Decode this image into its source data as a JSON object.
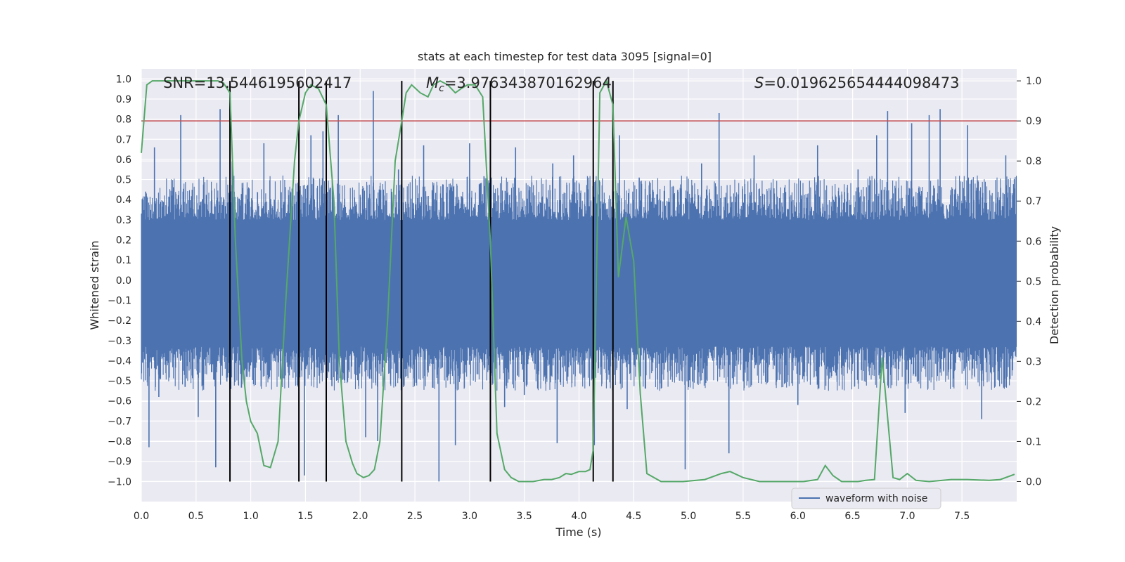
{
  "chart_data": {
    "type": "line",
    "title": "stats at each timestep for test data 3095 [signal=0]",
    "xlabel": "Time (s)",
    "ylabel_left": "Whitened strain",
    "ylabel_right": "Detection probability",
    "xlim": [
      0.0,
      8.0
    ],
    "ylim_left": [
      -1.1,
      1.05
    ],
    "ylim_right": [
      -0.05,
      1.03
    ],
    "x_ticks": [
      "0.0",
      "0.5",
      "1.0",
      "1.5",
      "2.0",
      "2.5",
      "3.0",
      "3.5",
      "4.0",
      "4.5",
      "5.0",
      "5.5",
      "6.0",
      "6.5",
      "7.0",
      "7.5"
    ],
    "x_tick_values": [
      0.0,
      0.5,
      1.0,
      1.5,
      2.0,
      2.5,
      3.0,
      3.5,
      4.0,
      4.5,
      5.0,
      5.5,
      6.0,
      6.5,
      7.0,
      7.5
    ],
    "y_left_ticks": [
      "1.0",
      "0.9",
      "0.8",
      "0.7",
      "0.6",
      "0.5",
      "0.4",
      "0.3",
      "0.2",
      "0.1",
      "0.0",
      "−0.1",
      "−0.2",
      "−0.3",
      "−0.4",
      "−0.5",
      "−0.6",
      "−0.7",
      "−0.8",
      "−0.9",
      "−1.0"
    ],
    "y_left_tick_values": [
      1.0,
      0.9,
      0.8,
      0.7,
      0.6,
      0.5,
      0.4,
      0.3,
      0.2,
      0.1,
      0.0,
      -0.1,
      -0.2,
      -0.3,
      -0.4,
      -0.5,
      -0.6,
      -0.7,
      -0.8,
      -0.9,
      -1.0
    ],
    "y_right_ticks": [
      "1.0",
      "0.9",
      "0.8",
      "0.7",
      "0.6",
      "0.5",
      "0.4",
      "0.3",
      "0.2",
      "0.1",
      "0.0"
    ],
    "y_right_tick_values": [
      1.0,
      0.9,
      0.8,
      0.7,
      0.6,
      0.5,
      0.4,
      0.3,
      0.2,
      0.1,
      0.0
    ],
    "annotations": {
      "snr": "SNR=13.5446195602417",
      "mc_symbol": "M",
      "mc_sub": "c",
      "mc_value": "=3.976343870162964",
      "s_symbol": "S",
      "s_value": "=0.019625654444098473"
    },
    "threshold": 0.9,
    "vertical_lines": [
      0.81,
      1.44,
      1.69,
      2.38,
      3.19,
      4.13,
      4.31
    ],
    "waveform_series": {
      "name": "waveform with noise",
      "color": "#4c72b0",
      "duration": 8.0,
      "samples": 2400,
      "spikes": [
        {
          "x": 0.04,
          "value": 0.44
        },
        {
          "x": 0.07,
          "value": -0.83
        },
        {
          "x": 0.12,
          "value": 0.66
        },
        {
          "x": 0.16,
          "value": -0.58
        },
        {
          "x": 0.36,
          "value": 0.82
        },
        {
          "x": 0.4,
          "value": -0.53
        },
        {
          "x": 0.52,
          "value": -0.68
        },
        {
          "x": 0.68,
          "value": -0.93
        },
        {
          "x": 0.72,
          "value": 0.85
        },
        {
          "x": 0.83,
          "value": 0.59
        },
        {
          "x": 1.12,
          "value": 0.68
        },
        {
          "x": 1.49,
          "value": -0.97
        },
        {
          "x": 1.55,
          "value": 0.72
        },
        {
          "x": 1.66,
          "value": 0.74
        },
        {
          "x": 1.69,
          "value": -0.73
        },
        {
          "x": 1.8,
          "value": 0.82
        },
        {
          "x": 2.05,
          "value": -0.78
        },
        {
          "x": 2.12,
          "value": 0.94
        },
        {
          "x": 2.16,
          "value": -0.8
        },
        {
          "x": 2.35,
          "value": 0.55
        },
        {
          "x": 2.58,
          "value": 0.67
        },
        {
          "x": 2.72,
          "value": -1.0
        },
        {
          "x": 2.87,
          "value": -0.82
        },
        {
          "x": 3.0,
          "value": 0.68
        },
        {
          "x": 3.32,
          "value": -0.63
        },
        {
          "x": 3.42,
          "value": 0.66
        },
        {
          "x": 3.5,
          "value": -0.57
        },
        {
          "x": 3.76,
          "value": 0.58
        },
        {
          "x": 3.8,
          "value": -0.81
        },
        {
          "x": 3.95,
          "value": 0.62
        },
        {
          "x": 4.14,
          "value": -0.82
        },
        {
          "x": 4.37,
          "value": 0.72
        },
        {
          "x": 4.44,
          "value": -0.64
        },
        {
          "x": 4.55,
          "value": 0.51
        },
        {
          "x": 4.97,
          "value": -0.94
        },
        {
          "x": 5.12,
          "value": 0.58
        },
        {
          "x": 5.28,
          "value": 0.83
        },
        {
          "x": 5.37,
          "value": -0.86
        },
        {
          "x": 5.6,
          "value": 0.62
        },
        {
          "x": 6.0,
          "value": -0.62
        },
        {
          "x": 6.18,
          "value": 0.67
        },
        {
          "x": 6.55,
          "value": 0.55
        },
        {
          "x": 6.72,
          "value": 0.72
        },
        {
          "x": 6.82,
          "value": 0.84
        },
        {
          "x": 6.98,
          "value": -0.66
        },
        {
          "x": 7.04,
          "value": 0.78
        },
        {
          "x": 7.2,
          "value": 0.82
        },
        {
          "x": 7.3,
          "value": 0.85
        },
        {
          "x": 7.55,
          "value": 0.77
        },
        {
          "x": 7.68,
          "value": -0.69
        },
        {
          "x": 7.9,
          "value": 0.62
        }
      ]
    },
    "probability_series": {
      "color": "#55a868",
      "x": [
        0.0,
        0.05,
        0.1,
        0.3,
        0.5,
        0.7,
        0.75,
        0.81,
        0.86,
        0.92,
        0.96,
        1.0,
        1.06,
        1.12,
        1.18,
        1.25,
        1.32,
        1.4,
        1.44,
        1.5,
        1.55,
        1.62,
        1.69,
        1.76,
        1.81,
        1.87,
        1.93,
        1.97,
        2.03,
        2.08,
        2.13,
        2.18,
        2.25,
        2.32,
        2.38,
        2.42,
        2.47,
        2.55,
        2.62,
        2.67,
        2.73,
        2.8,
        2.87,
        2.92,
        2.98,
        3.05,
        3.12,
        3.19,
        3.25,
        3.32,
        3.38,
        3.45,
        3.5,
        3.58,
        3.68,
        3.75,
        3.82,
        3.88,
        3.93,
        4.0,
        4.06,
        4.1,
        4.13,
        4.19,
        4.25,
        4.31,
        4.36,
        4.43,
        4.5,
        4.56,
        4.62,
        4.75,
        4.95,
        5.15,
        5.3,
        5.38,
        5.5,
        5.65,
        5.85,
        6.05,
        6.18,
        6.25,
        6.32,
        6.4,
        6.55,
        6.62,
        6.7,
        6.77,
        6.87,
        6.93,
        7.0,
        7.08,
        7.2,
        7.4,
        7.55,
        7.75,
        7.85,
        7.98
      ],
      "y": [
        0.82,
        0.99,
        1.0,
        1.0,
        1.0,
        1.0,
        0.995,
        0.97,
        0.6,
        0.3,
        0.2,
        0.15,
        0.12,
        0.04,
        0.035,
        0.1,
        0.45,
        0.8,
        0.9,
        0.97,
        0.99,
        0.98,
        0.94,
        0.7,
        0.3,
        0.1,
        0.045,
        0.02,
        0.01,
        0.015,
        0.03,
        0.1,
        0.4,
        0.8,
        0.9,
        0.97,
        0.99,
        0.97,
        0.96,
        0.99,
        1.0,
        0.99,
        0.97,
        0.98,
        0.99,
        0.99,
        0.96,
        0.6,
        0.12,
        0.03,
        0.01,
        0.0,
        0.0,
        0.0,
        0.005,
        0.005,
        0.01,
        0.02,
        0.018,
        0.025,
        0.025,
        0.03,
        0.08,
        0.97,
        1.0,
        0.94,
        0.51,
        0.66,
        0.55,
        0.22,
        0.02,
        0.0,
        0.0,
        0.005,
        0.02,
        0.025,
        0.01,
        0.0,
        0.0,
        0.0,
        0.005,
        0.04,
        0.015,
        0.0,
        0.0,
        0.003,
        0.005,
        0.31,
        0.01,
        0.005,
        0.02,
        0.003,
        0.0,
        0.005,
        0.005,
        0.003,
        0.005,
        0.018
      ]
    },
    "threshold_color": "#c44e52",
    "vline_color": "#000000",
    "background_color": "#eaeaf2",
    "grid": true,
    "legend": {
      "position": "lower-right",
      "entries": [
        "waveform with noise"
      ]
    }
  }
}
